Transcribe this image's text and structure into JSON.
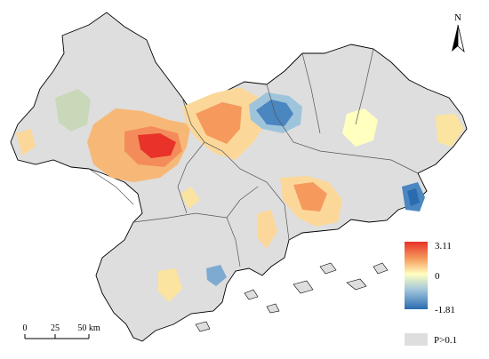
{
  "map": {
    "north_label": "N",
    "scale": {
      "ticks": [
        "0",
        "25",
        "50 km"
      ]
    },
    "legend": {
      "max_label": "3.11",
      "mid_label": "0",
      "min_label": "-1.81",
      "nodata_label": "P>0.1",
      "colors": {
        "high": "#e8322a",
        "mid": "#ffffc0",
        "low": "#2b6cb0",
        "nodata": "#dedede"
      }
    },
    "hotspots": [
      {
        "name": "red-core",
        "value": 3.11
      },
      {
        "name": "north-blue",
        "value": -1.6
      },
      {
        "name": "east-blue",
        "value": -1.81
      },
      {
        "name": "south-blue",
        "value": -1.2
      }
    ]
  }
}
